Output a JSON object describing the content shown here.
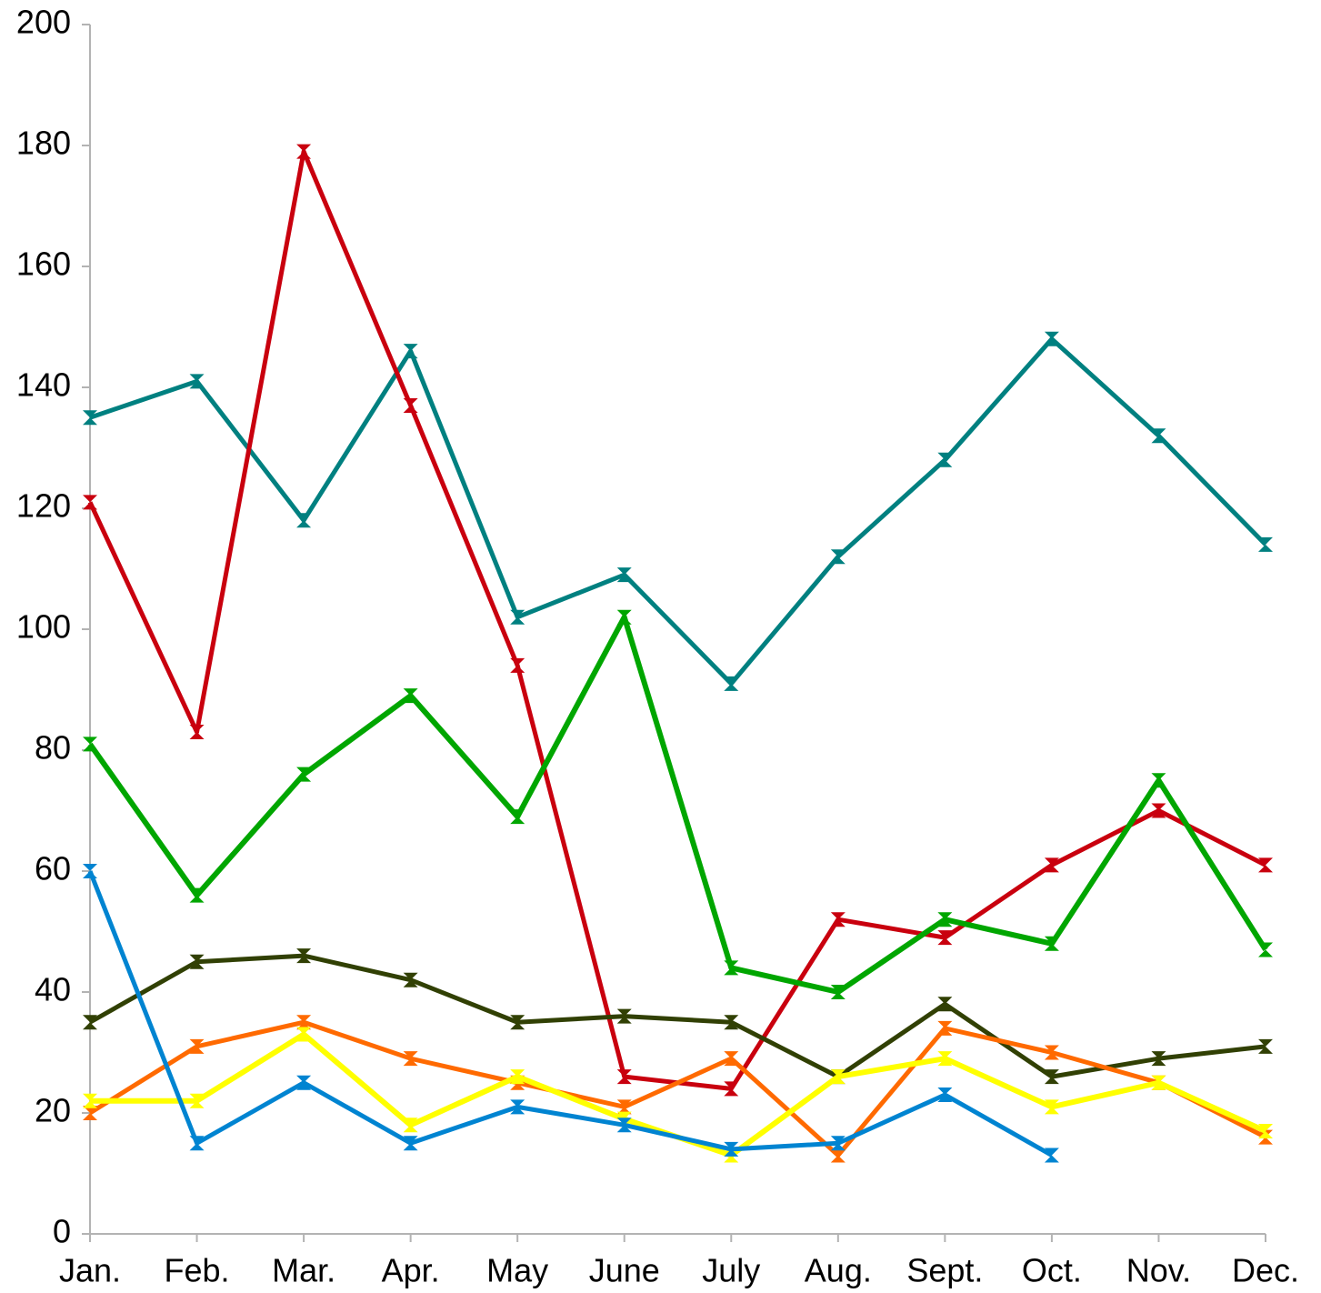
{
  "chart_data": {
    "type": "line",
    "categories": [
      "Jan.",
      "Feb.",
      "Mar.",
      "Apr.",
      "May",
      "June",
      "July",
      "Aug.",
      "Sept.",
      "Oct.",
      "Nov.",
      "Dec."
    ],
    "series": [
      {
        "color": "#008080",
        "values": [
          135,
          141,
          118,
          146,
          102,
          109,
          91,
          112,
          128,
          148,
          132,
          114
        ]
      },
      {
        "color": "#c9000e",
        "values": [
          121,
          83,
          179,
          137,
          94,
          26,
          24,
          52,
          49,
          61,
          70,
          61
        ]
      },
      {
        "color": "#00a600",
        "values": [
          81,
          56,
          76,
          89,
          69,
          102,
          44,
          40,
          52,
          48,
          75,
          47
        ]
      },
      {
        "color": "#314004",
        "values": [
          35,
          45,
          46,
          42,
          35,
          36,
          35,
          26,
          38,
          26,
          29,
          31
        ]
      },
      {
        "color": "#ff6a00",
        "values": [
          20,
          31,
          35,
          29,
          25,
          21,
          29,
          13,
          34,
          30,
          25,
          16
        ]
      },
      {
        "color": "#ffff00",
        "values": [
          22,
          22,
          33,
          18,
          26,
          19,
          13,
          26,
          29,
          21,
          25,
          17
        ]
      },
      {
        "color": "#0084d1",
        "values": [
          60,
          15,
          25,
          15,
          21,
          18,
          14,
          15,
          23,
          13,
          null,
          null
        ]
      }
    ],
    "ylim": [
      0,
      200
    ],
    "yticks": [
      0,
      20,
      40,
      60,
      80,
      100,
      120,
      140,
      160,
      180,
      200
    ],
    "grid": false
  }
}
